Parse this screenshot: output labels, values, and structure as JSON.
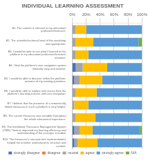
{
  "chart_data": {
    "type": "bar",
    "orientation": "horizontal",
    "stacked": true,
    "title": "INDIVIDUAL LEARNING ASSESSMENT",
    "categories": [
      "B1. The content is relevant to my education/\nprofession/research.",
      "B2. The scientific/technical level of this workshop\nwas appropriate.",
      "B3. I would be able to use what I learned in this\nplatform in my education/ profession/research\nactivities.",
      "B4. I find the platform's user navigation system\nrelatively easy and intuitive.",
      "B5. I would be able to discover within the platform,\nanswers of my existing questions.",
      "B6. I would be able to explore new issues from the\nplatform's learning process and user navigation.",
      "B7. I believe that the presence of a semantically\nlinked thesaurus in such a platform is very helpful.",
      "B8. The current thesaurus was valuable throughout\nthe whole educational experience.",
      "B9. The Interlinked Thesaurus Management System\n(TMS) Themas improved my learning efficiency and\nunderstanding of the concepts included.",
      "B10. The thesaurus's concepts tree representations\nhelped me to better understand its structure and\ncontent."
    ],
    "series": [
      {
        "name": "strongly disagree",
        "color": "#4472c4",
        "values": [
          0,
          0,
          0,
          5,
          3,
          0,
          0,
          0,
          3,
          3
        ]
      },
      {
        "name": "disagree",
        "color": "#ed7d31",
        "values": [
          0,
          0,
          0,
          0,
          0,
          0,
          0,
          0,
          0,
          0
        ]
      },
      {
        "name": "neutral",
        "color": "#a5a5a5",
        "values": [
          5,
          5,
          5,
          10,
          8,
          5,
          3,
          5,
          8,
          5
        ]
      },
      {
        "name": "agree",
        "color": "#ffc000",
        "values": [
          15,
          25,
          18,
          35,
          32,
          30,
          20,
          28,
          18,
          28
        ]
      },
      {
        "name": "strongly agree",
        "color": "#5b9bd5",
        "values": [
          80,
          65,
          77,
          50,
          57,
          65,
          77,
          67,
          68,
          64
        ]
      },
      {
        "name": "N/A",
        "color": "#70ad47",
        "values": [
          0,
          5,
          0,
          0,
          0,
          0,
          0,
          0,
          3,
          0
        ]
      }
    ],
    "xlim": [
      0,
      100
    ],
    "xticks": [
      {
        "value": 0,
        "label": "0%"
      },
      {
        "value": 20,
        "label": "20%"
      },
      {
        "value": 40,
        "label": "40%"
      },
      {
        "value": 60,
        "label": "60%"
      },
      {
        "value": 80,
        "label": "80%"
      },
      {
        "value": 100,
        "label": "100%"
      }
    ],
    "grid": true,
    "legend": "bottom"
  }
}
